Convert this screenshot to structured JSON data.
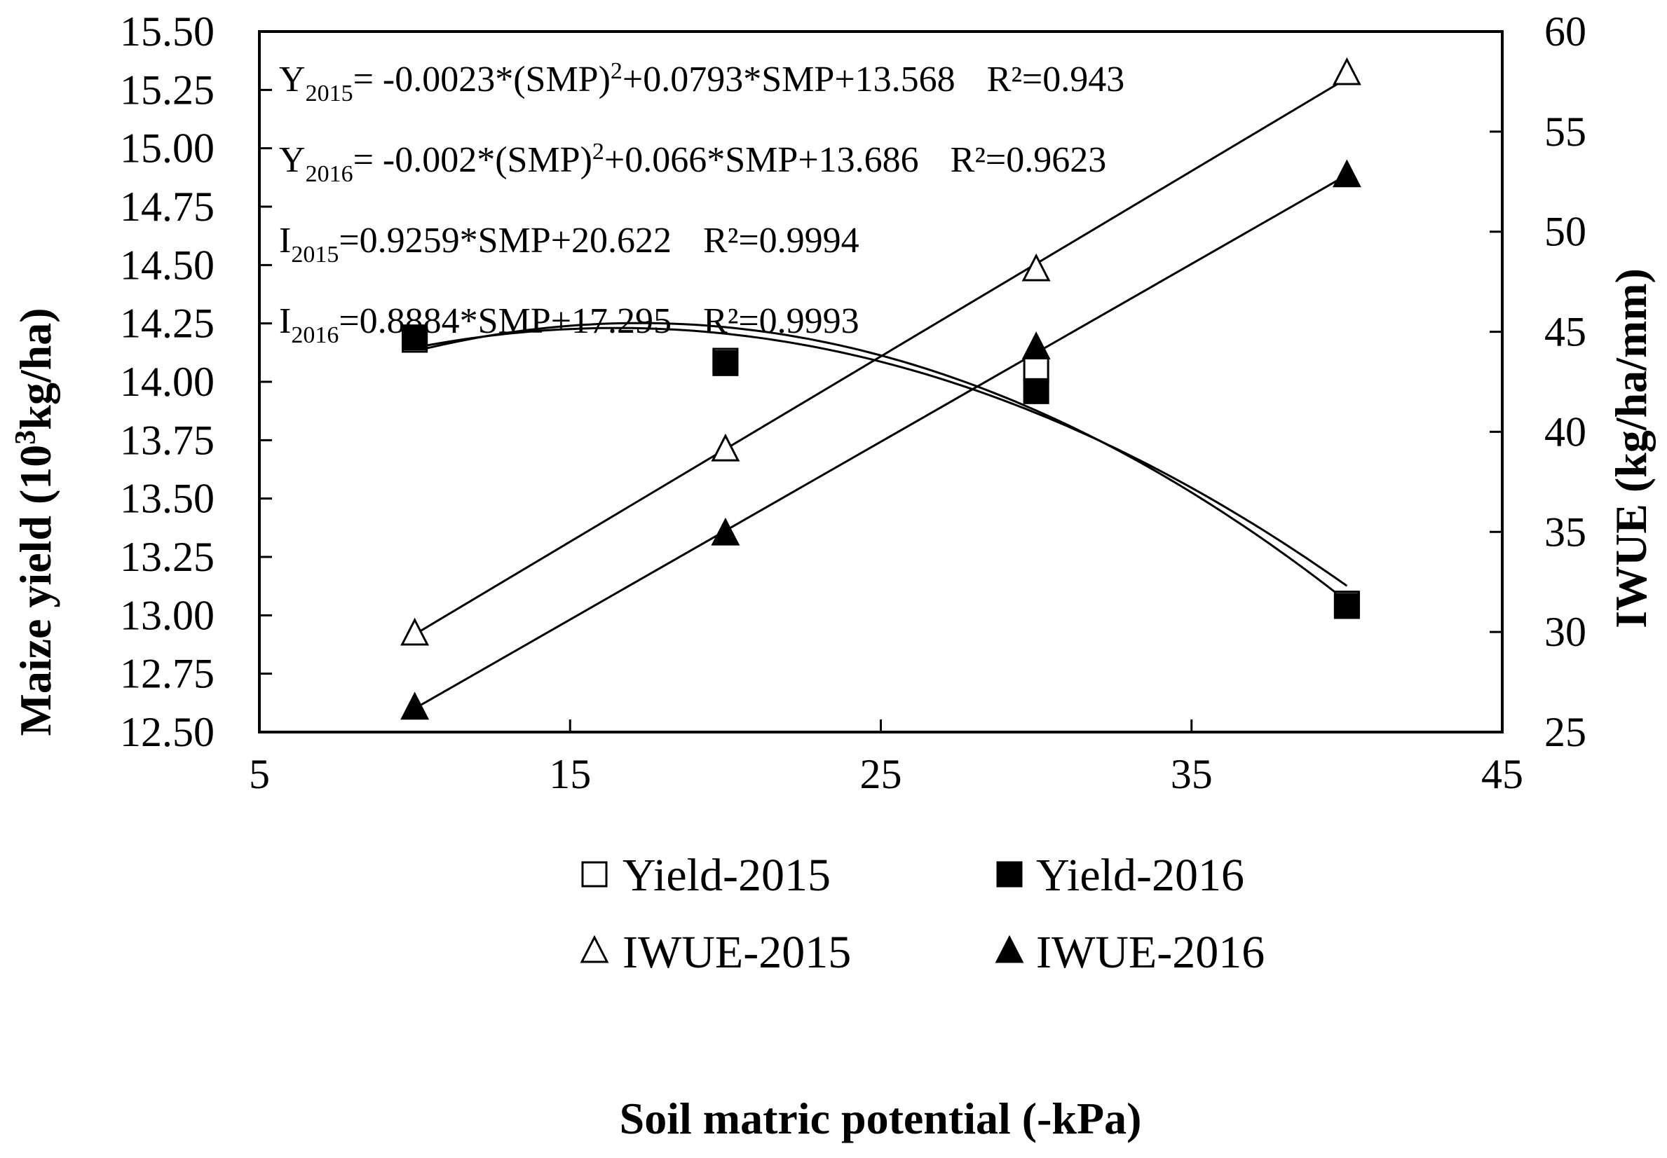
{
  "chart_data": {
    "type": "scatter",
    "xlabel": "Soil matric potential (-kPa)",
    "ylabel_left": "Maize yield (10³kg/ha)",
    "ylabel_left_parts": {
      "pre": "Maize yield (10",
      "sup": "3",
      "post": "kg/ha)"
    },
    "ylabel_right": "IWUE (kg/ha/mm)",
    "xlim": [
      5,
      45
    ],
    "ylim_left": [
      12.5,
      15.5
    ],
    "ylim_right": [
      25,
      60
    ],
    "x_ticks": [
      "5",
      "15",
      "25",
      "35",
      "45"
    ],
    "y_left_ticks": [
      "12.50",
      "12.75",
      "13.00",
      "13.25",
      "13.50",
      "13.75",
      "14.00",
      "14.25",
      "14.50",
      "14.75",
      "15.00",
      "15.25",
      "15.50"
    ],
    "y_right_ticks": [
      "25",
      "30",
      "35",
      "40",
      "45",
      "50",
      "55",
      "60"
    ],
    "grid": false,
    "legend_position": "bottom-center",
    "series": [
      {
        "name": "Yield-2015",
        "axis": "left",
        "marker": "square-open",
        "x": [
          10,
          20,
          30,
          40
        ],
        "y": [
          14.18,
          14.09,
          14.05,
          13.05
        ]
      },
      {
        "name": "Yield-2016",
        "axis": "left",
        "marker": "square-filled",
        "x": [
          10,
          20,
          30,
          40
        ],
        "y": [
          14.19,
          14.08,
          13.96,
          13.04
        ]
      },
      {
        "name": "IWUE-2015",
        "axis": "right",
        "marker": "triangle-open",
        "x": [
          10,
          20,
          30,
          40
        ],
        "y": [
          29.9,
          39.1,
          48.1,
          57.9
        ]
      },
      {
        "name": "IWUE-2016",
        "axis": "right",
        "marker": "triangle-filled",
        "x": [
          10,
          20,
          30,
          40
        ],
        "y": [
          26.2,
          34.9,
          44.2,
          52.8
        ]
      }
    ],
    "fits": [
      {
        "series": "Yield-2015",
        "axis": "left",
        "kind": "quadratic",
        "a": -0.0023,
        "b": 0.0793,
        "c": 13.568
      },
      {
        "series": "Yield-2016",
        "axis": "left",
        "kind": "quadratic",
        "a": -0.002,
        "b": 0.066,
        "c": 13.686
      },
      {
        "series": "IWUE-2015",
        "axis": "right",
        "kind": "linear",
        "slope": 0.9259,
        "intercept": 20.622
      },
      {
        "series": "IWUE-2016",
        "axis": "right",
        "kind": "linear",
        "slope": 0.8884,
        "intercept": 17.295
      }
    ],
    "equations": [
      {
        "var": "Y",
        "sub": "2015",
        "rhs_a": "= -0.0023*(SMP)",
        "sup": "2",
        "rhs_b": "+0.0793*SMP+13.568",
        "r2": "R²=0.943"
      },
      {
        "var": "Y",
        "sub": "2016",
        "rhs_a": "= -0.002*(SMP)",
        "sup": "2",
        "rhs_b": "+0.066*SMP+13.686",
        "r2": "R²=0.9623"
      },
      {
        "var": "I",
        "sub": "2015",
        "rhs_a": "=0.9259*SMP+20.622",
        "sup": "",
        "rhs_b": "",
        "r2": "R²=0.9994"
      },
      {
        "var": "I",
        "sub": "2016",
        "rhs_a": "=0.8884*SMP+17.295",
        "sup": "",
        "rhs_b": "",
        "r2": "R²=0.9993"
      }
    ]
  }
}
